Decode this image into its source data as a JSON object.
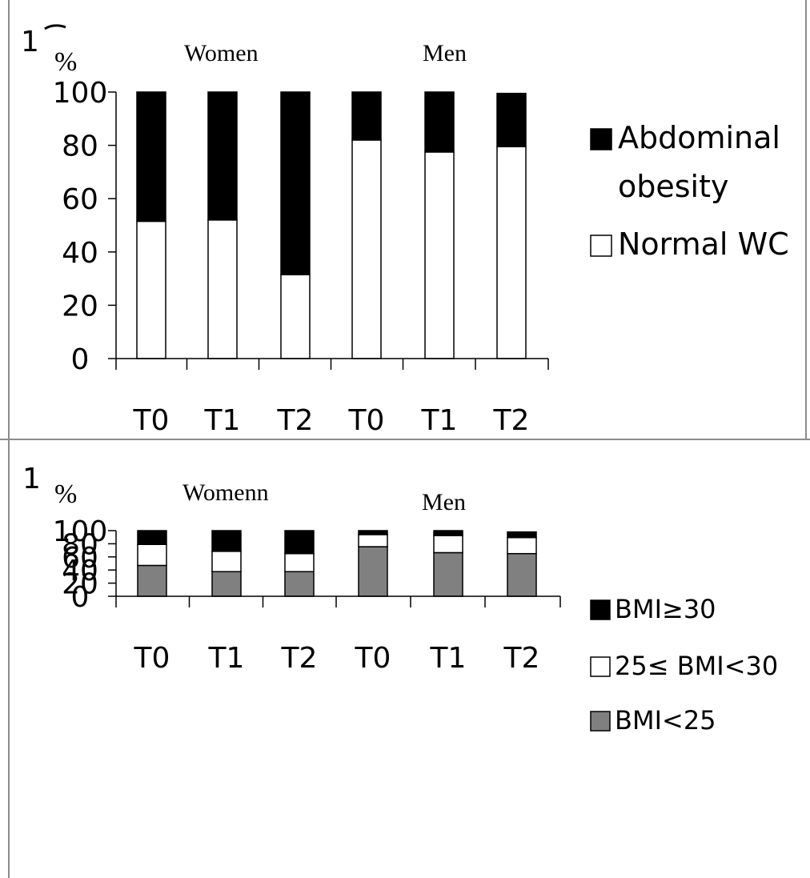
{
  "chart_data": [
    {
      "type": "bar",
      "stacked": true,
      "clipped_top_label": "1",
      "unit_label": "%",
      "group_labels": [
        "Women",
        "Men"
      ],
      "categories": [
        "T0",
        "T1",
        "T2",
        "T0",
        "T1",
        "T2"
      ],
      "yticks": [
        "0",
        "20",
        "40",
        "60",
        "80",
        "100"
      ],
      "ylim": [
        0,
        100
      ],
      "legend_position": "right",
      "series": [
        {
          "name": "Normal WC",
          "color": "#ffffff",
          "values": [
            51.5,
            52,
            31.5,
            82,
            77.5,
            79.5
          ]
        },
        {
          "name": "Abdominal obesity",
          "color": "#000000",
          "values": [
            48.5,
            48,
            68.5,
            18,
            22.5,
            20
          ]
        }
      ],
      "legend": [
        {
          "series_index": 1,
          "lines": [
            "Abdominal",
            "obesity"
          ]
        },
        {
          "series_index": 0,
          "lines": [
            "Normal WC"
          ]
        }
      ]
    },
    {
      "type": "bar",
      "stacked": true,
      "clipped_top_label": "1",
      "unit_label": "%",
      "group_labels": [
        "Womenn",
        "Men"
      ],
      "categories": [
        "T0",
        "T1",
        "T2",
        "T0",
        "T1",
        "T2"
      ],
      "yticks": [
        "0",
        "20",
        "40",
        "60",
        "80",
        "100"
      ],
      "ylim": [
        0,
        100
      ],
      "legend_position": "right",
      "series": [
        {
          "name": "BMI<25",
          "color": "#808080",
          "values": [
            47,
            37.5,
            37.5,
            75.5,
            66.5,
            65
          ]
        },
        {
          "name": "25≤ BMI<30",
          "color": "#ffffff",
          "values": [
            32,
            31,
            27.5,
            18.5,
            26,
            24.5
          ]
        },
        {
          "name": "BMI≥30",
          "color": "#000000",
          "values": [
            21,
            31.5,
            35,
            6,
            7.5,
            8.5
          ]
        }
      ],
      "legend": [
        {
          "series_index": 2,
          "lines": [
            "BMI≥30"
          ]
        },
        {
          "series_index": 1,
          "lines": [
            "25≤ BMI<30"
          ]
        },
        {
          "series_index": 0,
          "lines": [
            "BMI<25"
          ]
        }
      ]
    }
  ]
}
